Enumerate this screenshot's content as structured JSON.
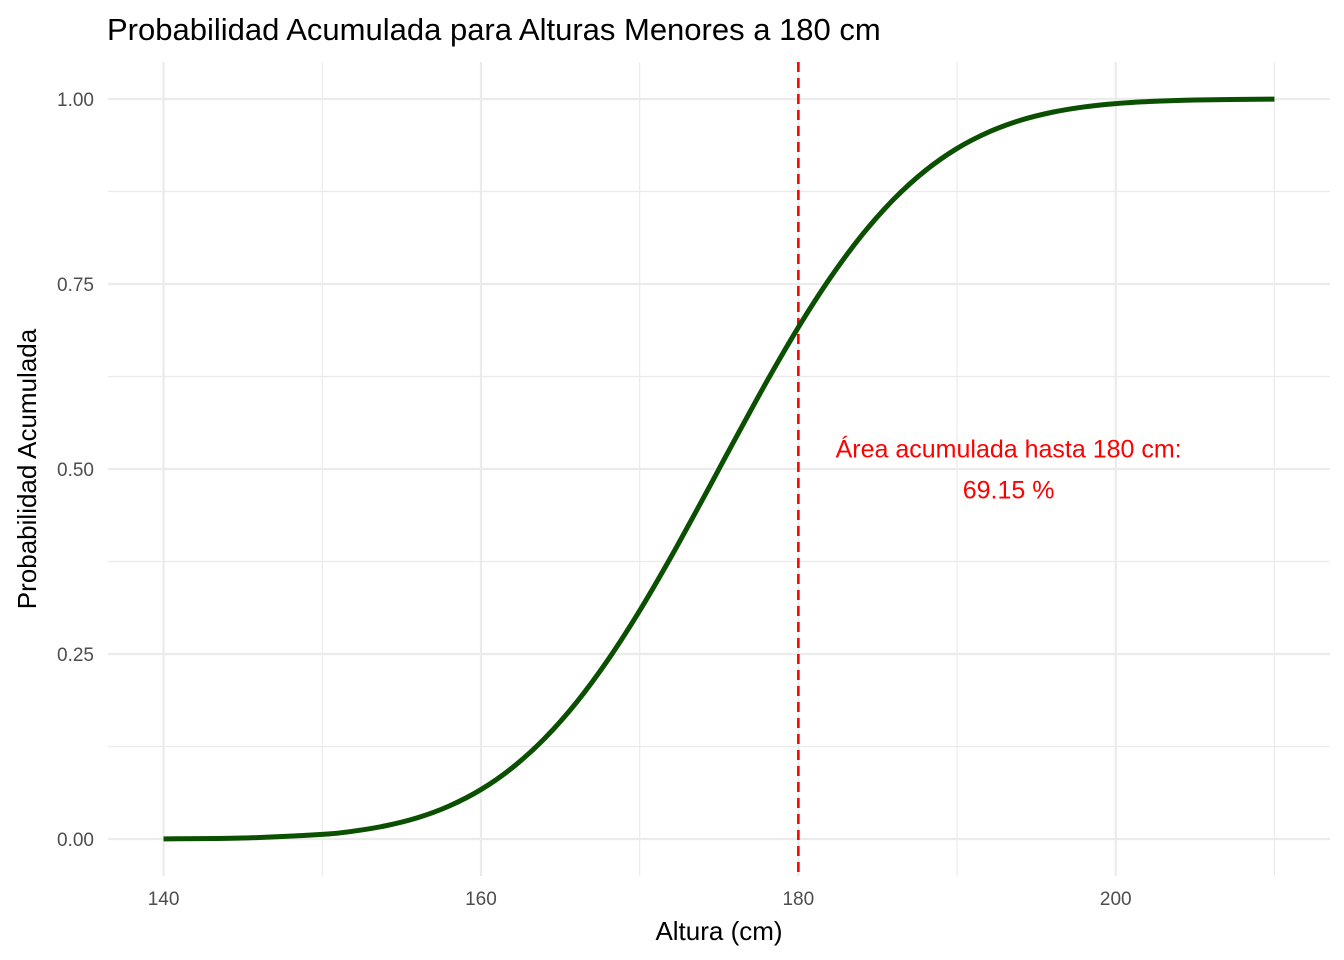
{
  "chart_data": {
    "type": "line",
    "title": "Probabilidad Acumulada para Alturas Menores a 180 cm",
    "xlabel": "Altura (cm)",
    "ylabel": "Probabilidad Acumulada",
    "xlim": [
      136.5,
      213.5
    ],
    "ylim": [
      -0.05,
      1.05
    ],
    "x_ticks": [
      140,
      160,
      180,
      200
    ],
    "x_tick_labels": [
      "140",
      "160",
      "180",
      "200"
    ],
    "y_ticks": [
      0,
      0.25,
      0.5,
      0.75,
      1
    ],
    "y_tick_labels": [
      "0.00",
      "0.25",
      "0.50",
      "0.75",
      "1.00"
    ],
    "x_minor_ticks": [
      150,
      170,
      190,
      210
    ],
    "y_minor_ticks": [
      0.125,
      0.375,
      0.625,
      0.875
    ],
    "grid": true,
    "series": [
      {
        "color": "#0a5000",
        "x": [
          140,
          145,
          150,
          152,
          154,
          156,
          158,
          160,
          162,
          164,
          166,
          168,
          170,
          172,
          174,
          175,
          176,
          178,
          180,
          182,
          184,
          186,
          188,
          190,
          192,
          194,
          196,
          198,
          200,
          202,
          205,
          210
        ],
        "y": [
          0.0002,
          0.0013,
          0.0062,
          0.0107,
          0.0179,
          0.0287,
          0.0446,
          0.0668,
          0.0968,
          0.1357,
          0.1841,
          0.242,
          0.3085,
          0.3821,
          0.4602,
          0.5,
          0.5398,
          0.6179,
          0.6915,
          0.758,
          0.8159,
          0.8643,
          0.9032,
          0.9332,
          0.9554,
          0.9713,
          0.9821,
          0.9893,
          0.9938,
          0.9965,
          0.9987,
          0.9998
        ]
      }
    ],
    "vline": {
      "x": 180,
      "color": "#ff0000",
      "style": "dashed"
    },
    "annotation": {
      "lines": [
        "Área acumulada hasta 180 cm:",
        "69.15 %"
      ],
      "x": 193.25,
      "y": 0.5,
      "color": "#ff0000"
    }
  }
}
